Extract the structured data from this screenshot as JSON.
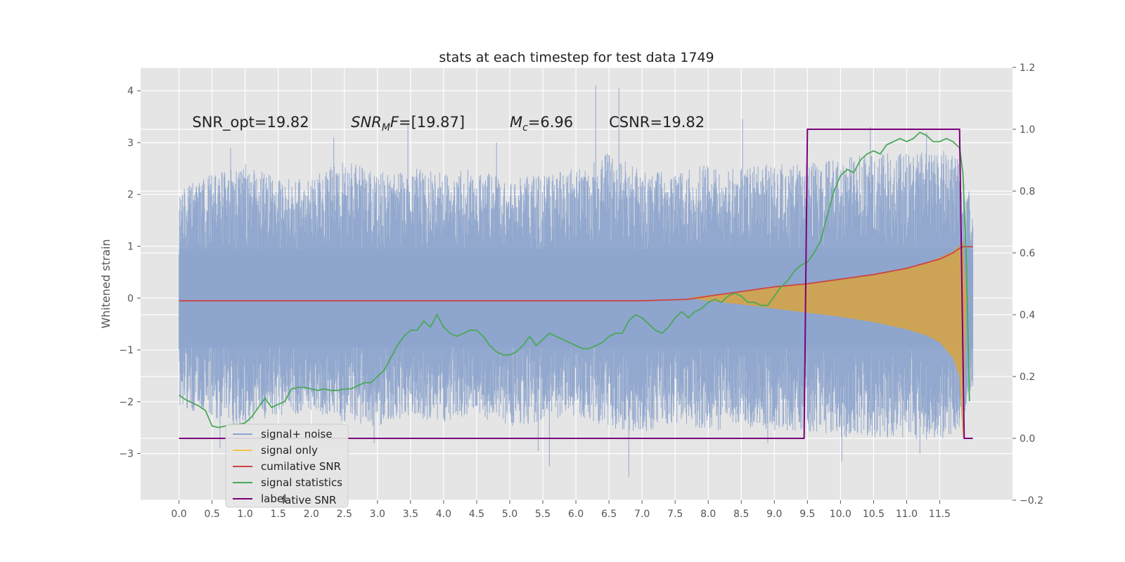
{
  "chart_data": {
    "type": "line",
    "title": "stats at each timestep for test data 1749",
    "ylabel": "Whitened strain",
    "xlabel": "",
    "xlim": [
      -0.58,
      12.6
    ],
    "ylim": [
      -3.9,
      4.45
    ],
    "y2lim": [
      -0.2,
      1.2
    ],
    "grid": true,
    "x_ticks": [
      "0.0",
      "0.5",
      "1.0",
      "1.5",
      "2.0",
      "2.5",
      "3.0",
      "3.5",
      "4.0",
      "4.5",
      "5.0",
      "5.5",
      "6.0",
      "6.5",
      "7.0",
      "7.5",
      "8.0",
      "8.5",
      "9.0",
      "9.5",
      "10.0",
      "10.5",
      "11.0",
      "11.5"
    ],
    "y_ticks": [
      {
        "v": 4,
        "t": "4"
      },
      {
        "v": 3,
        "t": "3"
      },
      {
        "v": 2,
        "t": "2"
      },
      {
        "v": 1,
        "t": "1"
      },
      {
        "v": 0,
        "t": "0"
      },
      {
        "v": -1,
        "t": "−1"
      },
      {
        "v": -2,
        "t": "−2"
      },
      {
        "v": -3,
        "t": "−3"
      }
    ],
    "y2_ticks": [
      {
        "v": 1.2,
        "t": "1.2"
      },
      {
        "v": 1.0,
        "t": "1.0"
      },
      {
        "v": 0.8,
        "t": "0.8"
      },
      {
        "v": 0.6,
        "t": "0.6"
      },
      {
        "v": 0.4,
        "t": "0.4"
      },
      {
        "v": 0.2,
        "t": "0.2"
      },
      {
        "v": 0.0,
        "t": "0.0"
      },
      {
        "v": -0.2,
        "t": "−0.2"
      }
    ],
    "annotations": [
      {
        "id": "snr-opt",
        "x": 0.2,
        "y": 3.3,
        "parts": [
          {
            "t": "SNR_opt=19.82"
          }
        ]
      },
      {
        "id": "snr-mf",
        "x": 2.6,
        "y": 3.3,
        "parts": [
          {
            "t": "SNR",
            "i": true
          },
          {
            "t": "M",
            "i": true,
            "sub": true
          },
          {
            "t": "F",
            "i": true
          },
          {
            "t": "=[19.87]"
          }
        ]
      },
      {
        "id": "mc",
        "x": 5.0,
        "y": 3.3,
        "parts": [
          {
            "t": "M",
            "i": true
          },
          {
            "t": "c",
            "i": true,
            "sub": true
          },
          {
            "t": "=6.96"
          }
        ]
      },
      {
        "id": "csnr",
        "x": 6.5,
        "y": 3.3,
        "parts": [
          {
            "t": "CSNR=19.82"
          }
        ]
      }
    ],
    "legend": {
      "placement": "lower-left",
      "entries": [
        {
          "name": "signal+ noise",
          "color": "#8da4cc"
        },
        {
          "name": "signal only",
          "color": "#f3c54b"
        },
        {
          "name": "cumilative SNR",
          "color": "#cc4444"
        },
        {
          "name": "signal statistics",
          "color": "#4aa85a"
        },
        {
          "name": "label",
          "color": "#7a007a"
        }
      ],
      "ghost_text": "lative SNR"
    },
    "series": [
      {
        "name": "signal+ noise",
        "axis": "left",
        "color": "#8da4cc",
        "x_range": [
          0.0,
          12.0
        ],
        "envelope_x": [
          0.0,
          0.5,
          1.0,
          1.5,
          2.0,
          2.5,
          3.0,
          3.5,
          4.0,
          4.5,
          5.0,
          5.5,
          6.0,
          6.5,
          7.0,
          7.5,
          8.0,
          8.5,
          9.0,
          9.5,
          10.0,
          10.5,
          11.0,
          11.5,
          11.8,
          12.0
        ],
        "envelope_upper": [
          2.1,
          2.4,
          2.6,
          2.3,
          2.3,
          2.7,
          2.4,
          2.6,
          2.4,
          2.5,
          2.3,
          2.4,
          2.5,
          2.8,
          2.5,
          2.4,
          2.6,
          2.5,
          2.6,
          2.6,
          2.7,
          2.8,
          2.8,
          2.9,
          2.7,
          1.8
        ],
        "envelope_lower": [
          -2.1,
          -2.3,
          -2.5,
          -2.3,
          -2.2,
          -2.4,
          -2.5,
          -2.3,
          -2.4,
          -2.3,
          -2.5,
          -2.4,
          -2.3,
          -2.5,
          -2.6,
          -2.4,
          -2.6,
          -2.5,
          -2.6,
          -2.6,
          -2.7,
          -2.7,
          -2.7,
          -2.8,
          -2.5,
          -1.8
        ],
        "spikes": [
          [
            0.78,
            2.9
          ],
          [
            2.34,
            3.1
          ],
          [
            3.46,
            3.35
          ],
          [
            4.8,
            3.0
          ],
          [
            6.3,
            4.1
          ],
          [
            6.65,
            4.05
          ],
          [
            8.52,
            3.45
          ],
          [
            10.45,
            3.3
          ],
          [
            11.3,
            3.2
          ],
          [
            0.62,
            -2.9
          ],
          [
            5.43,
            -2.95
          ],
          [
            5.6,
            -3.25
          ],
          [
            6.8,
            -3.45
          ],
          [
            10.02,
            -3.15
          ],
          [
            11.2,
            -3.0
          ],
          [
            2.95,
            -2.8
          ],
          [
            8.9,
            -2.8
          ]
        ]
      },
      {
        "name": "signal only",
        "axis": "left",
        "color": "#d9a441",
        "x": [
          7.7,
          8.0,
          8.5,
          9.0,
          9.5,
          10.0,
          10.5,
          11.0,
          11.3,
          11.5,
          11.7,
          11.8,
          11.85,
          11.9,
          12.0
        ],
        "upper": [
          0.0,
          0.05,
          0.12,
          0.2,
          0.28,
          0.36,
          0.46,
          0.58,
          0.68,
          0.78,
          0.9,
          1.0,
          1.1,
          0.0,
          0.0
        ],
        "lower": [
          0.0,
          -0.05,
          -0.12,
          -0.2,
          -0.28,
          -0.36,
          -0.46,
          -0.6,
          -0.72,
          -0.85,
          -1.15,
          -1.5,
          -2.7,
          0.0,
          0.0
        ]
      },
      {
        "name": "cumilative SNR",
        "axis": "right",
        "color": "#cc4444",
        "x": [
          0.0,
          7.0,
          7.7,
          8.0,
          8.5,
          9.0,
          9.5,
          10.0,
          10.5,
          11.0,
          11.5,
          11.7,
          11.8,
          11.85,
          12.0
        ],
        "y": [
          0.445,
          0.445,
          0.45,
          0.46,
          0.475,
          0.49,
          0.5,
          0.515,
          0.53,
          0.55,
          0.58,
          0.6,
          0.615,
          0.62,
          0.62
        ]
      },
      {
        "name": "signal statistics",
        "axis": "right",
        "color": "#4aa85a",
        "x": [
          0.0,
          0.1,
          0.2,
          0.3,
          0.4,
          0.5,
          0.6,
          0.7,
          0.8,
          0.9,
          1.0,
          1.1,
          1.2,
          1.3,
          1.4,
          1.5,
          1.6,
          1.7,
          1.8,
          1.9,
          2.0,
          2.1,
          2.2,
          2.3,
          2.4,
          2.5,
          2.6,
          2.7,
          2.8,
          2.9,
          3.0,
          3.1,
          3.2,
          3.3,
          3.4,
          3.5,
          3.6,
          3.7,
          3.8,
          3.9,
          4.0,
          4.1,
          4.2,
          4.3,
          4.4,
          4.5,
          4.6,
          4.7,
          4.8,
          4.9,
          5.0,
          5.1,
          5.2,
          5.3,
          5.4,
          5.5,
          5.6,
          5.7,
          5.8,
          5.9,
          6.0,
          6.1,
          6.2,
          6.3,
          6.4,
          6.5,
          6.6,
          6.7,
          6.8,
          6.9,
          7.0,
          7.1,
          7.2,
          7.3,
          7.4,
          7.5,
          7.6,
          7.7,
          7.8,
          7.9,
          8.0,
          8.1,
          8.2,
          8.3,
          8.4,
          8.5,
          8.6,
          8.7,
          8.8,
          8.9,
          9.0,
          9.1,
          9.2,
          9.3,
          9.4,
          9.5,
          9.6,
          9.7,
          9.8,
          9.9,
          10.0,
          10.1,
          10.2,
          10.3,
          10.4,
          10.5,
          10.6,
          10.7,
          10.8,
          10.9,
          11.0,
          11.1,
          11.2,
          11.3,
          11.4,
          11.5,
          11.6,
          11.7,
          11.8,
          11.85,
          11.9,
          11.95
        ],
        "y": [
          0.14,
          0.125,
          0.115,
          0.105,
          0.09,
          0.04,
          0.035,
          0.04,
          0.045,
          0.045,
          0.05,
          0.07,
          0.1,
          0.13,
          0.1,
          0.11,
          0.12,
          0.16,
          0.165,
          0.165,
          0.16,
          0.155,
          0.16,
          0.155,
          0.155,
          0.16,
          0.16,
          0.17,
          0.18,
          0.18,
          0.2,
          0.22,
          0.26,
          0.3,
          0.33,
          0.35,
          0.35,
          0.38,
          0.36,
          0.4,
          0.36,
          0.34,
          0.33,
          0.34,
          0.35,
          0.35,
          0.33,
          0.3,
          0.28,
          0.27,
          0.27,
          0.28,
          0.3,
          0.33,
          0.3,
          0.32,
          0.34,
          0.33,
          0.32,
          0.31,
          0.3,
          0.29,
          0.29,
          0.3,
          0.31,
          0.33,
          0.34,
          0.34,
          0.38,
          0.4,
          0.39,
          0.37,
          0.35,
          0.34,
          0.36,
          0.39,
          0.41,
          0.39,
          0.41,
          0.42,
          0.44,
          0.45,
          0.44,
          0.46,
          0.47,
          0.46,
          0.44,
          0.44,
          0.43,
          0.43,
          0.46,
          0.49,
          0.51,
          0.54,
          0.56,
          0.57,
          0.6,
          0.64,
          0.72,
          0.8,
          0.85,
          0.87,
          0.86,
          0.9,
          0.92,
          0.93,
          0.92,
          0.95,
          0.96,
          0.97,
          0.96,
          0.97,
          0.99,
          0.98,
          0.96,
          0.96,
          0.97,
          0.96,
          0.94,
          0.86,
          0.6,
          0.12
        ]
      },
      {
        "name": "label",
        "axis": "right",
        "color": "#7a007a",
        "x": [
          0.0,
          9.45,
          9.5,
          11.8,
          11.87,
          12.0
        ],
        "y": [
          0.0,
          0.0,
          1.0,
          1.0,
          0.0,
          0.0
        ]
      }
    ]
  }
}
